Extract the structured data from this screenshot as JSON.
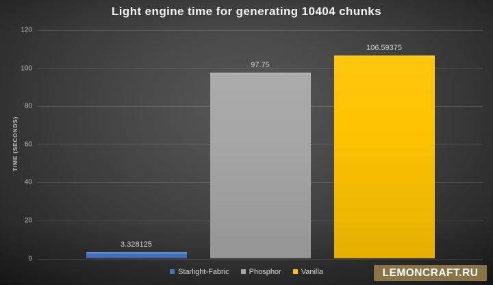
{
  "chart_data": {
    "type": "bar",
    "title": "Light engine time for generating 10404 chunks",
    "xlabel": "",
    "ylabel": "TIME (SECONDS)",
    "categories": [
      "Starlight-Fabric",
      "Phosphor",
      "Vanilla"
    ],
    "values": [
      3.328125,
      97.75,
      106.59375
    ],
    "value_labels": [
      "3.328125",
      "97.75",
      "106.59375"
    ],
    "bar_colors": [
      "#4472c4",
      "#a6a6a6",
      "#fec402"
    ],
    "ylim": [
      0,
      120
    ],
    "yticks": [
      0,
      20,
      40,
      60,
      80,
      100,
      120
    ],
    "grid": true,
    "legend_position": "bottom",
    "legend": [
      {
        "label": "Starlight-Fabric",
        "color": "#4472c4"
      },
      {
        "label": "Phosphor",
        "color": "#a6a6a6"
      },
      {
        "label": "Vanilla",
        "color": "#fec402"
      }
    ]
  },
  "watermark": {
    "text": "LEMONCRAFT.RU",
    "background_color": "#8a7347",
    "text_color": "#ffffff"
  },
  "colors": {
    "background_center": "#575757",
    "background_edge": "#1b1b1b",
    "gridline": "rgba(255,255,255,0.13)",
    "title_text": "#f4f4f4",
    "axis_text": "#bdbdbd",
    "value_text": "#d6d6d6"
  }
}
